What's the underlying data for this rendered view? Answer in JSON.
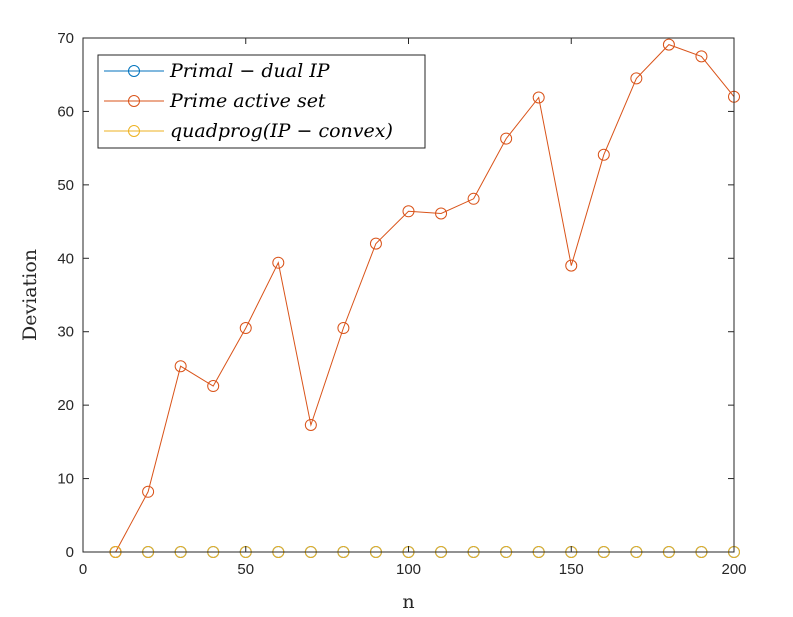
{
  "chart_data": {
    "type": "line",
    "title": "",
    "xlabel": "n",
    "ylabel": "Deviation",
    "xlim": [
      0,
      200
    ],
    "ylim": [
      0,
      70
    ],
    "xticks": [
      0,
      50,
      100,
      150,
      200
    ],
    "yticks": [
      0,
      10,
      20,
      30,
      40,
      50,
      60,
      70
    ],
    "grid": false,
    "legend_position": "top-left",
    "x": [
      10,
      20,
      30,
      40,
      50,
      60,
      70,
      80,
      90,
      100,
      110,
      120,
      130,
      140,
      150,
      160,
      170,
      180,
      190,
      200
    ],
    "series": [
      {
        "name": "Primal − dual IP",
        "color": "#0072BD",
        "marker": "circle",
        "values": [
          0,
          0,
          0,
          0,
          0,
          0,
          0,
          0,
          0,
          0,
          0,
          0,
          0,
          0,
          0,
          0,
          0,
          0,
          0,
          0
        ]
      },
      {
        "name": "Prime active set",
        "color": "#D95319",
        "marker": "circle",
        "values": [
          0,
          8.2,
          25.3,
          22.6,
          30.5,
          39.4,
          17.3,
          30.5,
          42.0,
          46.4,
          46.1,
          48.1,
          56.3,
          61.9,
          39.0,
          54.1,
          64.5,
          69.1,
          67.5,
          62.0
        ]
      },
      {
        "name": "quadprog(IP − convex)",
        "color": "#EDB120",
        "marker": "circle",
        "values": [
          0,
          0,
          0,
          0,
          0,
          0,
          0,
          0,
          0,
          0,
          0,
          0,
          0,
          0,
          0,
          0,
          0,
          0,
          0,
          0
        ]
      }
    ]
  }
}
